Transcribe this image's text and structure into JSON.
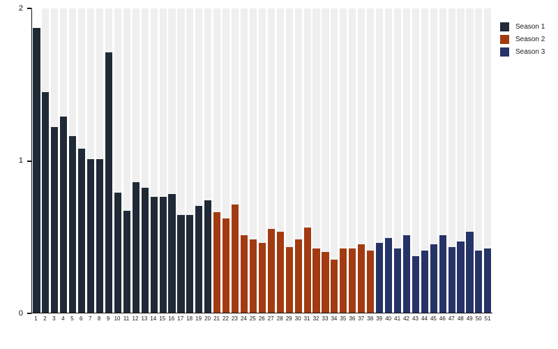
{
  "chart_data": {
    "type": "bar",
    "title": "",
    "xlabel": "",
    "ylabel": "",
    "ylim": [
      0,
      2
    ],
    "yticks": [
      0,
      1,
      2
    ],
    "grid": "vertical light-gray column bands behind each bar, no horizontal gridlines",
    "legend_position": "top-right outside plot",
    "categories": [
      "1",
      "2",
      "3",
      "4",
      "5",
      "6",
      "7",
      "8",
      "9",
      "10",
      "11",
      "12",
      "13",
      "14",
      "15",
      "16",
      "17",
      "18",
      "19",
      "20",
      "21",
      "22",
      "23",
      "24",
      "25",
      "26",
      "27",
      "28",
      "29",
      "30",
      "31",
      "32",
      "33",
      "34",
      "35",
      "36",
      "37",
      "38",
      "39",
      "40",
      "41",
      "42",
      "43",
      "44",
      "45",
      "46",
      "47",
      "48",
      "49",
      "50",
      "51"
    ],
    "series": [
      {
        "name": "Season 1",
        "color": "#202a36",
        "categories": [
          "1",
          "2",
          "3",
          "4",
          "5",
          "6",
          "7",
          "8",
          "9",
          "10",
          "11",
          "12",
          "13",
          "14",
          "15",
          "16",
          "17",
          "18",
          "19",
          "20"
        ],
        "values": [
          1.87,
          1.45,
          1.22,
          1.29,
          1.16,
          1.08,
          1.01,
          1.01,
          1.71,
          0.79,
          0.67,
          0.86,
          0.82,
          0.76,
          0.76,
          0.78,
          0.64,
          0.64,
          0.7,
          0.74
        ]
      },
      {
        "name": "Season 2",
        "color": "#a23b11",
        "categories": [
          "21",
          "22",
          "23",
          "24",
          "25",
          "26",
          "27",
          "28",
          "29",
          "30",
          "31",
          "32",
          "33",
          "34",
          "35",
          "36",
          "37",
          "38"
        ],
        "values": [
          0.66,
          0.62,
          0.71,
          0.51,
          0.48,
          0.46,
          0.55,
          0.53,
          0.43,
          0.48,
          0.56,
          0.42,
          0.4,
          0.35,
          0.42,
          0.42,
          0.45,
          0.41
        ]
      },
      {
        "name": "Season 3",
        "color": "#263367",
        "categories": [
          "39",
          "40",
          "41",
          "42",
          "43",
          "44",
          "45",
          "46",
          "47",
          "48",
          "49",
          "50",
          "51"
        ],
        "values": [
          0.46,
          0.49,
          0.42,
          0.51,
          0.37,
          0.41,
          0.45,
          0.51,
          0.43,
          0.47,
          0.53,
          0.41,
          0.42
        ]
      }
    ]
  },
  "axes": {
    "y_tick_labels": [
      "0",
      "1",
      "2"
    ],
    "x_tick_labels_first": "1",
    "x_tick_labels_last": "51"
  },
  "style": {
    "band_color": "#efefef",
    "axis_color": "#111111",
    "background_color": "#ffffff"
  }
}
